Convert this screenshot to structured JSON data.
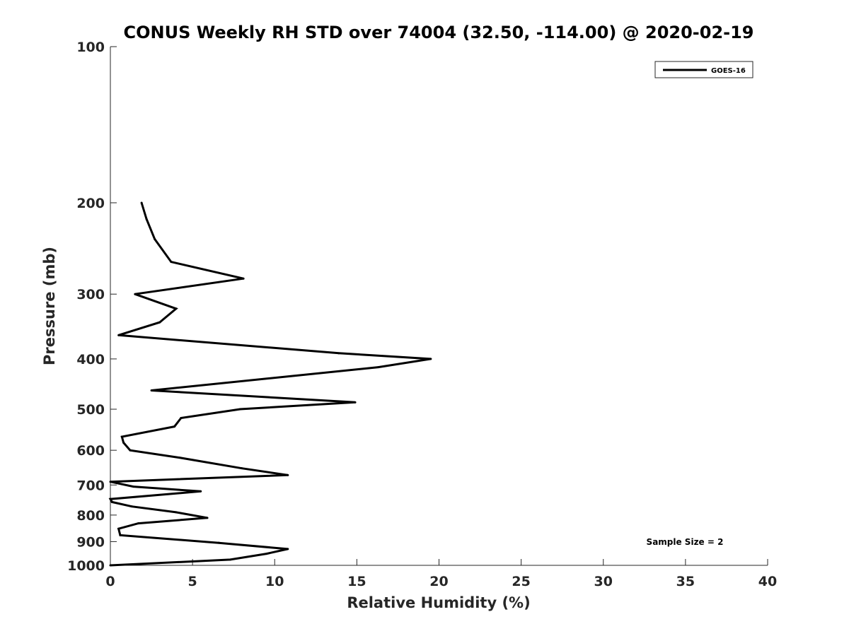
{
  "chart_data": {
    "type": "line",
    "title": "CONUS Weekly RH STD over 74004 (32.50, -114.00) @ 2020-02-19",
    "xlabel": "Relative Humidity (%)",
    "ylabel": "Pressure (mb)",
    "xlim": [
      0,
      40
    ],
    "ylim": [
      1000,
      100
    ],
    "y_scale": "log",
    "y_reversed": true,
    "grid": false,
    "legend_position": "top-right",
    "x_ticks": [
      "0",
      "5",
      "10",
      "15",
      "20",
      "25",
      "30",
      "35",
      "40"
    ],
    "y_ticks": [
      "100",
      "200",
      "300",
      "400",
      "500",
      "600",
      "700",
      "800",
      "900",
      "1000"
    ],
    "series": [
      {
        "name": "GOES-16",
        "color": "#000000",
        "x": [
          1.9,
          2.2,
          2.7,
          3.7,
          8.1,
          1.5,
          4.0,
          3.0,
          0.5,
          13.9,
          19.5,
          16.3,
          2.5,
          14.9,
          7.9,
          4.3,
          3.9,
          0.7,
          0.8,
          1.2,
          4.2,
          8.0,
          10.8,
          0.0,
          1.4,
          5.5,
          0.0,
          0.1,
          1.3,
          4.0,
          5.9,
          1.7,
          0.5,
          0.6,
          6.6,
          10.8,
          9.5,
          7.3,
          0.0
        ],
        "y": [
          200,
          215,
          235,
          260,
          280,
          300,
          320,
          340,
          360,
          390,
          400,
          415,
          460,
          485,
          500,
          520,
          540,
          565,
          580,
          600,
          620,
          650,
          670,
          690,
          705,
          720,
          745,
          755,
          770,
          790,
          810,
          830,
          850,
          875,
          905,
          930,
          950,
          975,
          1000
        ]
      }
    ],
    "annotations": [
      "Sample Size = 2"
    ]
  }
}
